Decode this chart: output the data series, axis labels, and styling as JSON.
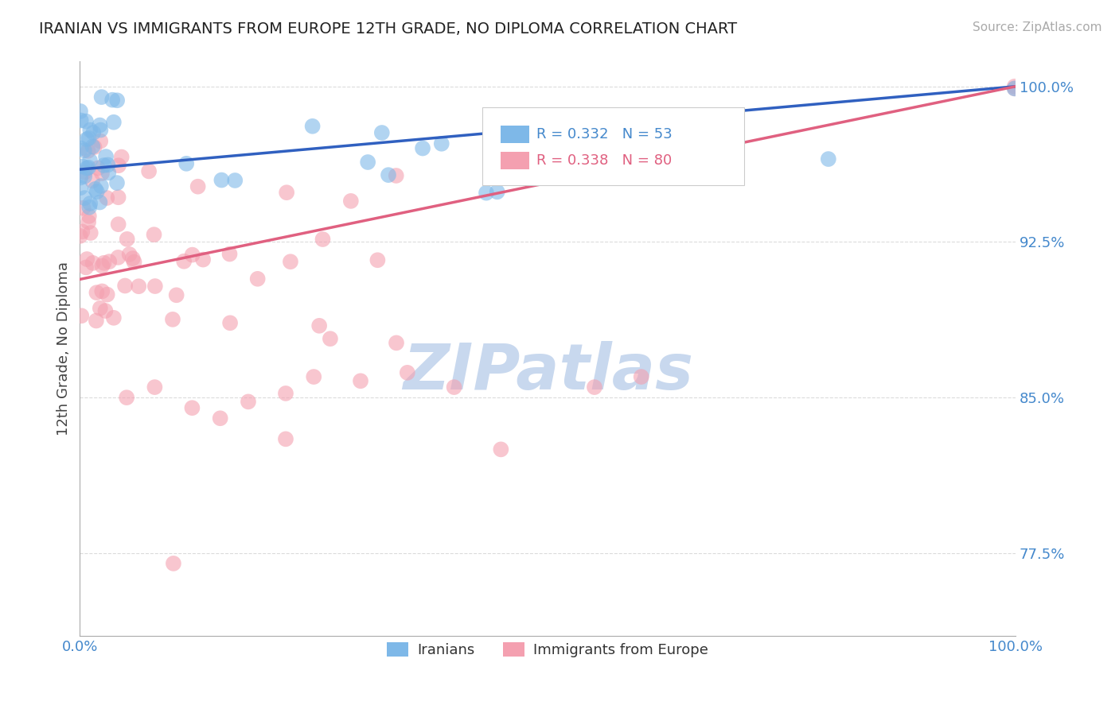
{
  "title": "IRANIAN VS IMMIGRANTS FROM EUROPE 12TH GRADE, NO DIPLOMA CORRELATION CHART",
  "source_text": "Source: ZipAtlas.com",
  "ylabel": "12th Grade, No Diploma",
  "xlim": [
    0.0,
    1.0
  ],
  "ylim": [
    0.735,
    1.012
  ],
  "yticks": [
    0.775,
    0.85,
    0.925,
    1.0
  ],
  "ytick_labels": [
    "77.5%",
    "85.0%",
    "92.5%",
    "100.0%"
  ],
  "xtick_labels": [
    "0.0%",
    "100.0%"
  ],
  "xticks": [
    0.0,
    1.0
  ],
  "iranians_color": "#7eb8e8",
  "europeans_color": "#f4a0b0",
  "trend_blue_color": "#3060c0",
  "trend_pink_color": "#e06080",
  "background_color": "#ffffff",
  "grid_color": "#cccccc",
  "watermark_text": "ZIPatlas",
  "watermark_color": "#c8d8ee",
  "legend_blue_text": "R = 0.332   N = 53",
  "legend_pink_text": "R = 0.338   N = 80",
  "legend_blue_color": "#4488cc",
  "legend_pink_color": "#e06080",
  "bottom_legend_iranians": "Iranians",
  "bottom_legend_europeans": "Immigrants from Europe"
}
